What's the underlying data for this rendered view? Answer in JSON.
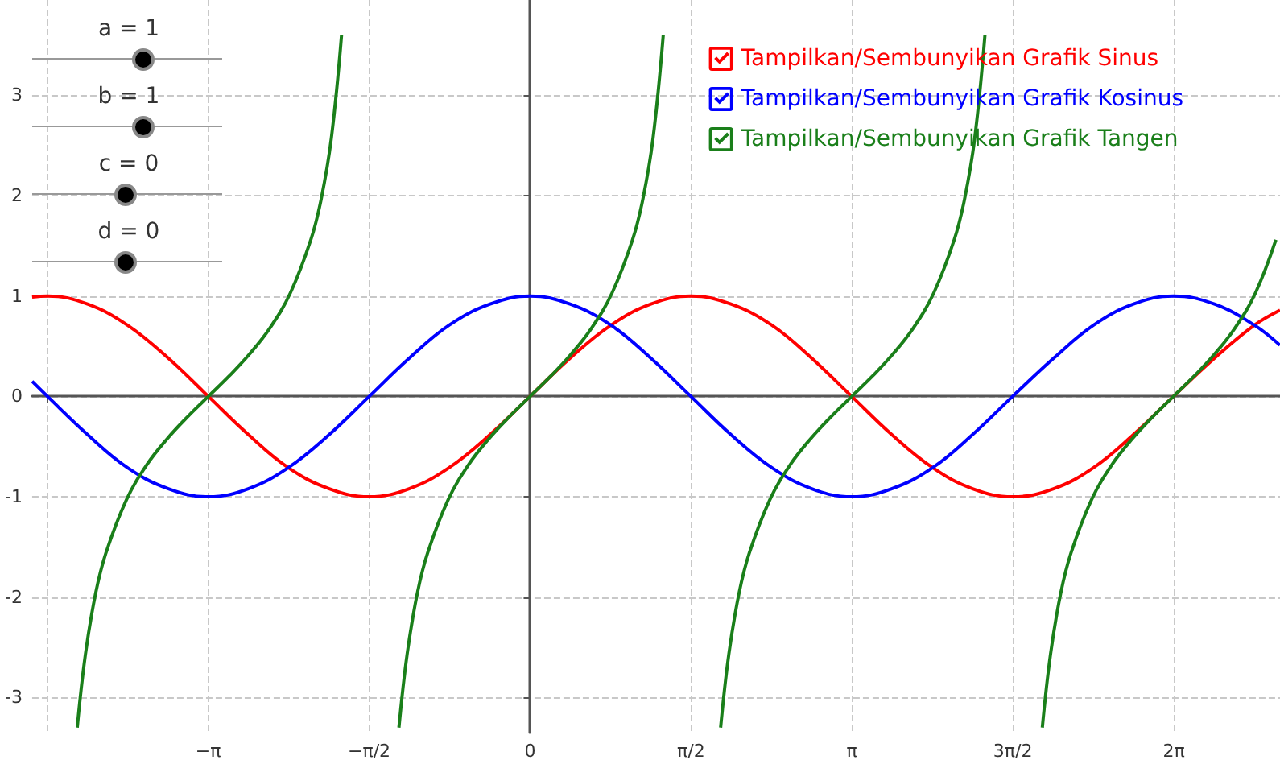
{
  "chart_data": {
    "type": "line",
    "xlim": [
      -4.86,
      7.32
    ],
    "ylim": [
      -3.35,
      3.95
    ],
    "xticks": [
      {
        "value": -4.712,
        "label": null
      },
      {
        "value": -3.1416,
        "label": "−π"
      },
      {
        "value": -1.5708,
        "label": "−π/2"
      },
      0,
      {
        "value": 1.5708,
        "label": "π/2"
      },
      {
        "value": 3.1416,
        "label": "π"
      },
      {
        "value": 4.7124,
        "label": "3π/2"
      },
      {
        "value": 6.2832,
        "label": "2π"
      }
    ],
    "yticks": [
      -3,
      -2,
      -1,
      0,
      1,
      2,
      3
    ],
    "grid": true,
    "legend": "top right",
    "marker": "none",
    "line_style": "solid",
    "annotations": [
      "a = 1",
      "b = 1",
      "c = 0",
      "d = 0"
    ],
    "series": [
      {
        "name": "Tampilkan/Sembunyikan Grafik Sinus",
        "color": "#ff0000",
        "x": [
          -4.86,
          -4.71,
          -4.32,
          -3.93,
          -3.53,
          -3.14,
          -2.75,
          -2.36,
          -1.96,
          -1.57,
          -1.18,
          -0.79,
          -0.39,
          0,
          0.39,
          0.79,
          1.18,
          1.57,
          1.96,
          2.36,
          2.75,
          3.14,
          3.53,
          3.93,
          4.32,
          4.71,
          5.11,
          5.5,
          5.89,
          6.28,
          6.68,
          7.07,
          7.32
        ],
        "values": [
          0.99,
          1,
          0.92,
          0.71,
          0.38,
          0,
          -0.38,
          -0.71,
          -0.92,
          -1,
          -0.92,
          -0.71,
          -0.38,
          0,
          0.38,
          0.71,
          0.92,
          1,
          0.92,
          0.71,
          0.38,
          0,
          -0.38,
          -0.71,
          -0.92,
          -1,
          -0.92,
          -0.71,
          -0.38,
          0,
          0.38,
          0.71,
          0.86
        ]
      },
      {
        "name": "Tampilkan/Sembunyikan Grafik Kosinus",
        "color": "#0000ff",
        "x": [
          -4.86,
          -4.71,
          -4.32,
          -3.93,
          -3.53,
          -3.14,
          -2.75,
          -2.36,
          -1.96,
          -1.57,
          -1.18,
          -0.79,
          -0.39,
          0,
          0.39,
          0.79,
          1.18,
          1.57,
          1.96,
          2.36,
          2.75,
          3.14,
          3.53,
          3.93,
          4.32,
          4.71,
          5.11,
          5.5,
          5.89,
          6.28,
          6.68,
          7.07,
          7.32
        ],
        "values": [
          0.15,
          0,
          -0.38,
          -0.71,
          -0.92,
          -1,
          -0.92,
          -0.71,
          -0.38,
          0,
          0.38,
          0.71,
          0.92,
          1,
          0.92,
          0.71,
          0.38,
          0,
          -0.38,
          -0.71,
          -0.92,
          -1,
          -0.92,
          -0.71,
          -0.38,
          0,
          0.38,
          0.71,
          0.92,
          1,
          0.92,
          0.71,
          0.51
        ]
      },
      {
        "name": "Tampilkan/Sembunyikan Grafik Tangen",
        "color": "#1a7f1a",
        "x": [
          -4.42,
          -4.34,
          -4.24,
          -4.14,
          -3.94,
          -3.74,
          -3.54,
          -3.34,
          -3.14,
          -2.94,
          -2.74,
          -2.54,
          -2.34,
          -2.14,
          -2.04,
          -1.94,
          -1.84,
          -1.57,
          -1.28,
          -1.2,
          -1.1,
          -1.0,
          -0.8,
          -0.6,
          -0.4,
          -0.2,
          0,
          0.2,
          0.4,
          0.6,
          0.8,
          1.0,
          1.1,
          1.2,
          1.3,
          1.57,
          1.86,
          1.94,
          2.04,
          2.14,
          2.34,
          2.54,
          2.74,
          2.94,
          3.14,
          3.34,
          3.54,
          3.74,
          3.94,
          4.14,
          4.24,
          4.34,
          4.44,
          4.71,
          5.0,
          5.08,
          5.18,
          5.28,
          5.48,
          5.68,
          5.88,
          6.08,
          6.28,
          6.48,
          6.68,
          6.88,
          7.08,
          7.28
        ],
        "values": [
          -3.3,
          -2.57,
          -1.96,
          -1.56,
          -1.03,
          -0.68,
          -0.42,
          -0.2,
          0,
          0.2,
          0.42,
          0.68,
          1.03,
          1.56,
          1.96,
          2.57,
          3.6,
          null,
          -3.3,
          -2.57,
          -1.96,
          -1.56,
          -1.03,
          -0.68,
          -0.42,
          -0.2,
          0,
          0.2,
          0.42,
          0.68,
          1.03,
          1.56,
          1.96,
          2.57,
          3.6,
          null,
          -3.3,
          -2.57,
          -1.96,
          -1.56,
          -1.03,
          -0.68,
          -0.42,
          -0.2,
          0,
          0.2,
          0.42,
          0.68,
          1.03,
          1.56,
          1.96,
          2.57,
          3.6,
          null,
          -3.3,
          -2.57,
          -1.96,
          -1.56,
          -1.03,
          -0.68,
          -0.42,
          -0.2,
          0,
          0.2,
          0.42,
          0.68,
          1.03,
          1.56
        ]
      }
    ]
  }
}
